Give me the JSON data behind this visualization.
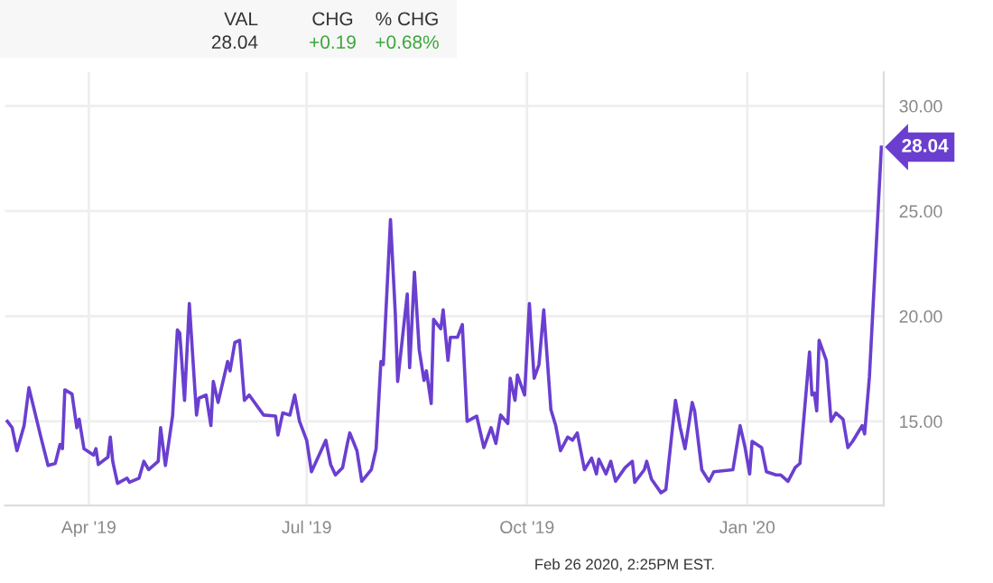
{
  "chart_data": {
    "type": "line",
    "x": [
      "2019-02-26",
      "2019-02-28",
      "2019-03-02",
      "2019-03-05",
      "2019-03-07",
      "2019-03-12",
      "2019-03-15",
      "2019-03-18",
      "2019-03-20",
      "2019-03-21",
      "2019-03-22",
      "2019-03-25",
      "2019-03-27",
      "2019-03-28",
      "2019-03-30",
      "2019-04-03",
      "2019-04-04",
      "2019-04-05",
      "2019-04-09",
      "2019-04-10",
      "2019-04-11",
      "2019-04-13",
      "2019-04-17",
      "2019-04-18",
      "2019-04-22",
      "2019-04-24",
      "2019-04-26",
      "2019-04-30",
      "2019-05-01",
      "2019-05-03",
      "2019-05-06",
      "2019-05-08",
      "2019-05-09",
      "2019-05-11",
      "2019-05-13",
      "2019-05-16",
      "2019-05-17",
      "2019-05-20",
      "2019-05-22",
      "2019-05-23",
      "2019-05-25",
      "2019-05-29",
      "2019-05-30",
      "2019-06-01",
      "2019-06-03",
      "2019-06-05",
      "2019-06-07",
      "2019-06-13",
      "2019-06-18",
      "2019-06-19",
      "2019-06-21",
      "2019-06-24",
      "2019-06-26",
      "2019-06-28",
      "2019-07-01",
      "2019-07-03",
      "2019-07-09",
      "2019-07-11",
      "2019-07-13",
      "2019-07-16",
      "2019-07-18",
      "2019-07-19",
      "2019-07-22",
      "2019-07-24",
      "2019-07-28",
      "2019-07-30",
      "2019-08-01",
      "2019-08-02",
      "2019-08-05",
      "2019-08-07",
      "2019-08-08",
      "2019-08-12",
      "2019-08-13",
      "2019-08-15",
      "2019-08-17",
      "2019-08-19",
      "2019-08-20",
      "2019-08-22",
      "2019-08-23",
      "2019-08-26",
      "2019-08-27",
      "2019-08-29",
      "2019-08-30",
      "2019-09-02",
      "2019-09-04",
      "2019-09-06",
      "2019-09-10",
      "2019-09-13",
      "2019-09-16",
      "2019-09-18",
      "2019-09-20",
      "2019-09-23",
      "2019-09-24",
      "2019-09-26",
      "2019-09-27",
      "2019-09-30",
      "2019-10-02",
      "2019-10-04",
      "2019-10-06",
      "2019-10-08",
      "2019-10-11",
      "2019-10-13",
      "2019-10-15",
      "2019-10-18",
      "2019-10-20",
      "2019-10-22",
      "2019-10-25",
      "2019-10-28",
      "2019-10-30",
      "2019-10-31",
      "2019-11-03",
      "2019-11-05",
      "2019-11-07",
      "2019-11-11",
      "2019-11-14",
      "2019-11-15",
      "2019-11-19",
      "2019-11-20",
      "2019-11-22",
      "2019-11-26",
      "2019-11-28",
      "2019-12-02",
      "2019-12-04",
      "2019-12-06",
      "2019-12-09",
      "2019-12-10",
      "2019-12-13",
      "2019-12-16",
      "2019-12-18",
      "2019-12-26",
      "2019-12-29",
      "2019-12-31",
      "2020-01-02",
      "2020-01-03",
      "2020-01-07",
      "2020-01-09",
      "2020-01-13",
      "2020-01-15",
      "2020-01-18",
      "2020-01-21",
      "2020-01-23",
      "2020-01-27",
      "2020-01-28",
      "2020-01-29",
      "2020-01-30",
      "2020-01-31",
      "2020-02-03",
      "2020-02-05",
      "2020-02-07",
      "2020-02-10",
      "2020-02-12",
      "2020-02-14",
      "2020-02-18",
      "2020-02-19",
      "2020-02-21",
      "2020-02-26"
    ],
    "series": [
      {
        "color": "#6a3fd0",
        "values": [
          15.0,
          14.7,
          13.6,
          14.8,
          16.6,
          14.25,
          12.9,
          13.0,
          13.9,
          13.7,
          16.5,
          16.3,
          14.7,
          15.1,
          13.7,
          13.4,
          13.7,
          12.95,
          13.3,
          14.25,
          13.1,
          12.05,
          12.3,
          12.1,
          12.3,
          13.1,
          12.7,
          13.1,
          14.7,
          12.9,
          15.25,
          19.35,
          19.2,
          16.0,
          20.6,
          15.3,
          16.1,
          16.25,
          14.8,
          16.9,
          15.9,
          17.85,
          17.4,
          18.75,
          18.85,
          16.0,
          16.25,
          15.3,
          15.25,
          14.35,
          15.4,
          15.3,
          16.25,
          15.0,
          14.1,
          12.6,
          14.1,
          12.95,
          12.45,
          12.8,
          13.95,
          14.45,
          13.6,
          12.15,
          12.7,
          13.7,
          17.85,
          17.7,
          24.6,
          20.15,
          16.9,
          21.05,
          17.55,
          22.1,
          18.4,
          16.95,
          17.4,
          15.85,
          19.85,
          19.4,
          20.3,
          17.9,
          19.0,
          19.0,
          19.6,
          15.0,
          15.25,
          13.75,
          14.7,
          13.95,
          15.3,
          14.9,
          17.05,
          16.0,
          17.2,
          16.25,
          20.6,
          17.05,
          17.7,
          20.3,
          15.55,
          14.8,
          13.6,
          14.25,
          14.1,
          14.45,
          12.7,
          13.25,
          12.5,
          13.2,
          12.5,
          13.1,
          12.15,
          12.8,
          13.1,
          12.1,
          12.7,
          13.1,
          12.25,
          11.6,
          11.75,
          16.0,
          14.7,
          13.7,
          15.9,
          15.5,
          12.7,
          12.15,
          12.6,
          12.7,
          14.8,
          13.8,
          12.5,
          14.05,
          13.75,
          12.6,
          12.45,
          12.45,
          12.15,
          12.8,
          13.0,
          18.3,
          16.25,
          16.35,
          15.5,
          18.85,
          17.9,
          15.0,
          15.4,
          15.1,
          13.75,
          14.05,
          14.8,
          14.4,
          17.1,
          28.04
        ],
        "value_labels": [
          null,
          null,
          null,
          null,
          null,
          null,
          null,
          null,
          null,
          null,
          null,
          null,
          null,
          null,
          null,
          null,
          null,
          null,
          null,
          null,
          null,
          null,
          null,
          null,
          null,
          null,
          null,
          null,
          null,
          null,
          null,
          null,
          null,
          null,
          null,
          null,
          null,
          null,
          null,
          null,
          null,
          null,
          null,
          null,
          null,
          null,
          null,
          null,
          null,
          null,
          null,
          null,
          null,
          null,
          null,
          null,
          null,
          null,
          null,
          null,
          null,
          null,
          null,
          null,
          null,
          null,
          null,
          null,
          null,
          null,
          null,
          null,
          null,
          null,
          null,
          null,
          null,
          null,
          null,
          null,
          null,
          null,
          null,
          null,
          null,
          null,
          null,
          null,
          null,
          null,
          null,
          null,
          null,
          null,
          null,
          null,
          null,
          null,
          null,
          null,
          null,
          null,
          null,
          null,
          null,
          null,
          null,
          null,
          null,
          null,
          null,
          null,
          null,
          null,
          null,
          null,
          null,
          null,
          null,
          null,
          null,
          null,
          null,
          null,
          null,
          null,
          null,
          null,
          null,
          null,
          null,
          null,
          null,
          null,
          null,
          null,
          null,
          null,
          null,
          null,
          null,
          null,
          null,
          null,
          null,
          null,
          null,
          null,
          null,
          null,
          null,
          null,
          null,
          null,
          null,
          "28.04"
        ]
      }
    ],
    "xlim": [
      "2019-02-25",
      "2020-02-27"
    ],
    "xticks": [
      {
        "value": "2019-04-01",
        "label": "Apr '19"
      },
      {
        "value": "2019-07-01",
        "label": "Jul '19"
      },
      {
        "value": "2019-10-01",
        "label": "Oct '19"
      },
      {
        "value": "2020-01-01",
        "label": "Jan '20"
      }
    ],
    "ylim": [
      11,
      31.6
    ],
    "yticks": [
      {
        "value": 15,
        "label": "15.00"
      },
      {
        "value": 20,
        "label": "20.00"
      },
      {
        "value": 25,
        "label": "25.00"
      },
      {
        "value": 30,
        "label": "30.00"
      }
    ],
    "grid": true,
    "legend": false,
    "marker": "none",
    "line_style": "solid",
    "annotations": [
      "VAL",
      "28.04",
      "CHG",
      "+0.19",
      "% CHG",
      "+0.68%",
      "Feb 26 2020, 2:25PM EST."
    ]
  }
}
